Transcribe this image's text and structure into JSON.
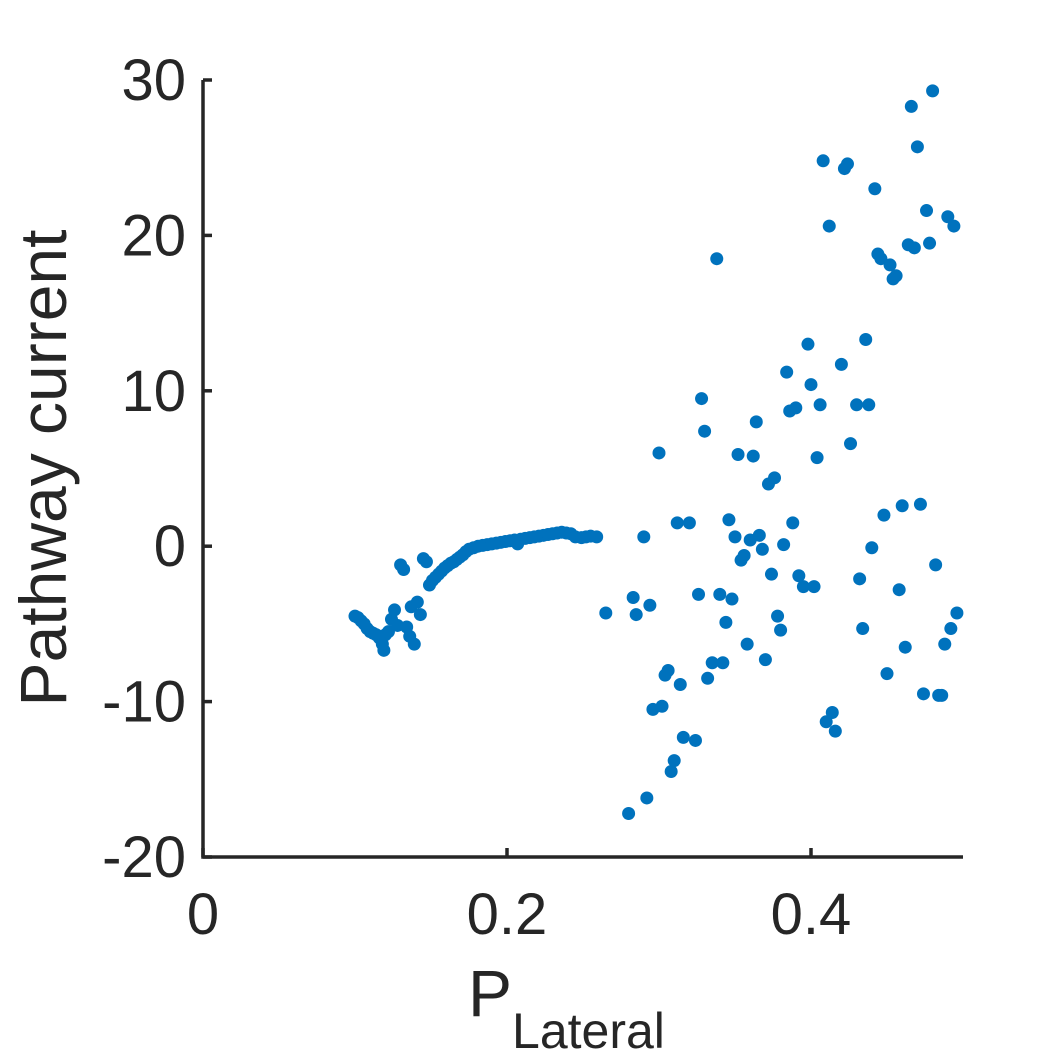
{
  "chart_data": {
    "type": "scatter",
    "ylabel": "Pathway current",
    "xlabel": {
      "main": "P",
      "subscript": "Lateral"
    },
    "xlim": [
      0,
      0.5
    ],
    "ylim": [
      -20,
      30
    ],
    "xticks": [
      {
        "value": 0,
        "label": "0"
      },
      {
        "value": 0.2,
        "label": "0.2"
      },
      {
        "value": 0.4,
        "label": "0.4"
      }
    ],
    "yticks": [
      {
        "value": -20,
        "label": "-20"
      },
      {
        "value": -10,
        "label": "-10"
      },
      {
        "value": 0,
        "label": "0"
      },
      {
        "value": 10,
        "label": "10"
      },
      {
        "value": 20,
        "label": "20"
      },
      {
        "value": 30,
        "label": "30"
      }
    ],
    "grid": false,
    "marker_color": "#0072BD",
    "series": [
      {
        "points": [
          [
            0.1,
            -4.5
          ],
          [
            0.102,
            -4.6
          ],
          [
            0.104,
            -4.8
          ],
          [
            0.106,
            -5.0
          ],
          [
            0.108,
            -5.3
          ],
          [
            0.11,
            -5.5
          ],
          [
            0.112,
            -5.6
          ],
          [
            0.114,
            -5.7
          ],
          [
            0.116,
            -5.9
          ],
          [
            0.118,
            -6.3
          ],
          [
            0.119,
            -6.7
          ],
          [
            0.12,
            -5.7
          ],
          [
            0.122,
            -5.5
          ],
          [
            0.124,
            -4.7
          ],
          [
            0.126,
            -4.1
          ],
          [
            0.128,
            -5.1
          ],
          [
            0.13,
            -1.2
          ],
          [
            0.132,
            -1.5
          ],
          [
            0.134,
            -5.2
          ],
          [
            0.136,
            -5.8
          ],
          [
            0.137,
            -3.9
          ],
          [
            0.139,
            -6.3
          ],
          [
            0.141,
            -3.6
          ],
          [
            0.143,
            -4.4
          ],
          [
            0.145,
            -0.8
          ],
          [
            0.147,
            -1.0
          ],
          [
            0.149,
            -2.5
          ],
          [
            0.151,
            -2.2
          ],
          [
            0.153,
            -2.0
          ],
          [
            0.155,
            -1.8
          ],
          [
            0.157,
            -1.6
          ],
          [
            0.159,
            -1.4
          ],
          [
            0.161,
            -1.25
          ],
          [
            0.163,
            -1.1
          ],
          [
            0.165,
            -1.0
          ],
          [
            0.167,
            -0.85
          ],
          [
            0.169,
            -0.7
          ],
          [
            0.171,
            -0.55
          ],
          [
            0.173,
            -0.35
          ],
          [
            0.175,
            -0.2
          ],
          [
            0.178,
            -0.1
          ],
          [
            0.181,
            0.0
          ],
          [
            0.184,
            0.05
          ],
          [
            0.187,
            0.1
          ],
          [
            0.19,
            0.15
          ],
          [
            0.193,
            0.2
          ],
          [
            0.196,
            0.25
          ],
          [
            0.199,
            0.3
          ],
          [
            0.202,
            0.35
          ],
          [
            0.205,
            0.4
          ],
          [
            0.207,
            0.15
          ],
          [
            0.209,
            0.45
          ],
          [
            0.212,
            0.5
          ],
          [
            0.215,
            0.55
          ],
          [
            0.218,
            0.6
          ],
          [
            0.221,
            0.65
          ],
          [
            0.224,
            0.7
          ],
          [
            0.227,
            0.75
          ],
          [
            0.23,
            0.8
          ],
          [
            0.233,
            0.85
          ],
          [
            0.236,
            0.9
          ],
          [
            0.239,
            0.85
          ],
          [
            0.242,
            0.8
          ],
          [
            0.245,
            0.6
          ],
          [
            0.249,
            0.55
          ],
          [
            0.252,
            0.6
          ],
          [
            0.255,
            0.65
          ],
          [
            0.259,
            0.6
          ],
          [
            0.265,
            -4.3
          ],
          [
            0.28,
            -17.2
          ],
          [
            0.283,
            -3.3
          ],
          [
            0.285,
            -4.4
          ],
          [
            0.29,
            0.6
          ],
          [
            0.292,
            -16.2
          ],
          [
            0.294,
            -3.8
          ],
          [
            0.296,
            -10.5
          ],
          [
            0.3,
            6.0
          ],
          [
            0.302,
            -10.3
          ],
          [
            0.304,
            -8.3
          ],
          [
            0.306,
            -8.0
          ],
          [
            0.308,
            -14.5
          ],
          [
            0.31,
            -13.8
          ],
          [
            0.312,
            1.5
          ],
          [
            0.314,
            -8.9
          ],
          [
            0.316,
            -12.3
          ],
          [
            0.32,
            1.5
          ],
          [
            0.324,
            -12.5
          ],
          [
            0.326,
            -3.1
          ],
          [
            0.328,
            9.5
          ],
          [
            0.33,
            7.4
          ],
          [
            0.332,
            -8.5
          ],
          [
            0.335,
            -7.5
          ],
          [
            0.338,
            18.5
          ],
          [
            0.34,
            -3.1
          ],
          [
            0.342,
            -7.5
          ],
          [
            0.344,
            -4.9
          ],
          [
            0.346,
            1.7
          ],
          [
            0.348,
            -3.4
          ],
          [
            0.35,
            0.6
          ],
          [
            0.352,
            5.9
          ],
          [
            0.354,
            -0.9
          ],
          [
            0.356,
            -0.6
          ],
          [
            0.358,
            -6.3
          ],
          [
            0.36,
            0.4
          ],
          [
            0.362,
            5.8
          ],
          [
            0.364,
            8.0
          ],
          [
            0.366,
            0.7
          ],
          [
            0.368,
            -0.2
          ],
          [
            0.37,
            -7.3
          ],
          [
            0.372,
            4.0
          ],
          [
            0.374,
            -1.8
          ],
          [
            0.376,
            4.4
          ],
          [
            0.378,
            -4.5
          ],
          [
            0.38,
            -5.4
          ],
          [
            0.382,
            0.1
          ],
          [
            0.384,
            11.2
          ],
          [
            0.386,
            8.7
          ],
          [
            0.388,
            1.5
          ],
          [
            0.39,
            8.9
          ],
          [
            0.392,
            -1.9
          ],
          [
            0.395,
            -2.6
          ],
          [
            0.398,
            13.0
          ],
          [
            0.4,
            10.4
          ],
          [
            0.402,
            -2.6
          ],
          [
            0.404,
            5.7
          ],
          [
            0.406,
            9.1
          ],
          [
            0.408,
            24.8
          ],
          [
            0.41,
            -11.3
          ],
          [
            0.412,
            20.6
          ],
          [
            0.414,
            -10.7
          ],
          [
            0.416,
            -11.9
          ],
          [
            0.42,
            11.7
          ],
          [
            0.422,
            24.3
          ],
          [
            0.424,
            24.6
          ],
          [
            0.426,
            6.6
          ],
          [
            0.43,
            9.1
          ],
          [
            0.432,
            -2.1
          ],
          [
            0.434,
            -5.3
          ],
          [
            0.436,
            13.3
          ],
          [
            0.438,
            9.1
          ],
          [
            0.44,
            -0.1
          ],
          [
            0.442,
            23.0
          ],
          [
            0.444,
            18.8
          ],
          [
            0.446,
            18.5
          ],
          [
            0.448,
            2.0
          ],
          [
            0.45,
            -8.2
          ],
          [
            0.452,
            18.1
          ],
          [
            0.454,
            17.2
          ],
          [
            0.456,
            17.4
          ],
          [
            0.458,
            -2.8
          ],
          [
            0.46,
            2.6
          ],
          [
            0.462,
            -6.5
          ],
          [
            0.464,
            19.4
          ],
          [
            0.466,
            28.3
          ],
          [
            0.468,
            19.2
          ],
          [
            0.47,
            25.7
          ],
          [
            0.472,
            2.7
          ],
          [
            0.474,
            -9.5
          ],
          [
            0.476,
            21.6
          ],
          [
            0.478,
            19.5
          ],
          [
            0.48,
            29.3
          ],
          [
            0.482,
            -1.2
          ],
          [
            0.484,
            -9.6
          ],
          [
            0.486,
            -9.6
          ],
          [
            0.488,
            -6.3
          ],
          [
            0.49,
            21.2
          ],
          [
            0.492,
            -5.3
          ],
          [
            0.494,
            20.6
          ],
          [
            0.496,
            -4.3
          ]
        ]
      }
    ]
  }
}
